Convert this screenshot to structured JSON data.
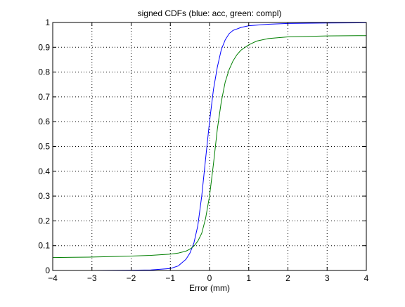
{
  "chart_data": {
    "type": "line",
    "title": "signed CDFs (blue: acc, green: compl)",
    "xlabel": "Error (mm)",
    "ylabel": "",
    "xlim": [
      -4,
      4
    ],
    "ylim": [
      0,
      1
    ],
    "xticks": [
      -4,
      -3,
      -2,
      -1,
      0,
      1,
      2,
      3,
      4
    ],
    "yticks": [
      0,
      0.1,
      0.2,
      0.3,
      0.4,
      0.5,
      0.6,
      0.7,
      0.8,
      0.9,
      1
    ],
    "xtick_labels": [
      "−4",
      "−3",
      "−2",
      "−1",
      "0",
      "1",
      "2",
      "3",
      "4"
    ],
    "ytick_labels": [
      "0",
      "0.1",
      "0.2",
      "0.3",
      "0.4",
      "0.5",
      "0.6",
      "0.7",
      "0.8",
      "0.9",
      "1"
    ],
    "grid": true,
    "grid_style": "dotted",
    "series": [
      {
        "color": "#0000ff",
        "x": [
          -3.0,
          -2.0,
          -1.5,
          -1.0,
          -0.8,
          -0.6,
          -0.5,
          -0.4,
          -0.3,
          -0.2,
          -0.1,
          0.0,
          0.1,
          0.2,
          0.3,
          0.4,
          0.5,
          0.6,
          0.8,
          1.0,
          1.5,
          2.0,
          3.0,
          4.0
        ],
        "y": [
          0.0,
          0.001,
          0.002,
          0.008,
          0.018,
          0.045,
          0.07,
          0.11,
          0.18,
          0.3,
          0.45,
          0.6,
          0.73,
          0.82,
          0.89,
          0.93,
          0.955,
          0.968,
          0.98,
          0.987,
          0.993,
          0.996,
          0.998,
          0.999
        ]
      },
      {
        "color": "#007f00",
        "x": [
          -4.0,
          -3.5,
          -3.0,
          -2.5,
          -2.0,
          -1.5,
          -1.0,
          -0.8,
          -0.6,
          -0.5,
          -0.4,
          -0.3,
          -0.2,
          -0.1,
          0.0,
          0.1,
          0.2,
          0.3,
          0.4,
          0.5,
          0.6,
          0.7,
          0.8,
          1.0,
          1.2,
          1.5,
          2.0,
          3.0,
          4.0
        ],
        "y": [
          0.052,
          0.053,
          0.054,
          0.056,
          0.058,
          0.061,
          0.066,
          0.07,
          0.078,
          0.086,
          0.098,
          0.118,
          0.15,
          0.21,
          0.3,
          0.43,
          0.57,
          0.68,
          0.76,
          0.81,
          0.845,
          0.87,
          0.888,
          0.91,
          0.925,
          0.935,
          0.942,
          0.946,
          0.947
        ]
      }
    ]
  }
}
